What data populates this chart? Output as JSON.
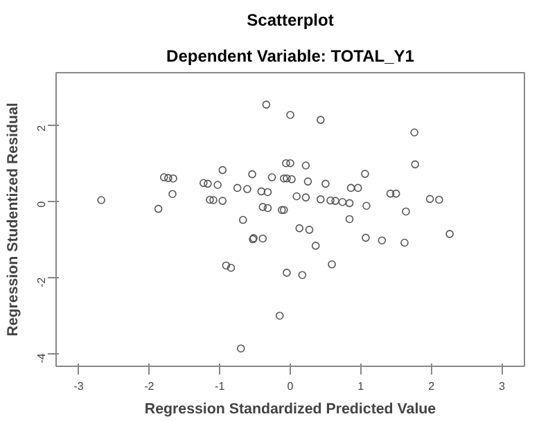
{
  "chart_data": {
    "type": "scatter",
    "title": "Scatterplot",
    "subtitle": "Dependent Variable: TOTAL_Y1",
    "xlabel": "Regression Standardized Predicted Value",
    "ylabel": "Regression Studentized Residual",
    "marker": "circle",
    "grid": false,
    "xlim": [
      -3.32,
      3.32
    ],
    "ylim": [
      -4.34,
      3.38
    ],
    "xticks": [
      -3,
      -2,
      -1,
      0,
      1,
      2,
      3
    ],
    "yticks": [
      -4,
      -2,
      0,
      2
    ],
    "series": [
      {
        "color": "#555555",
        "x": [
          -0.34,
          0.0,
          0.43,
          1.76,
          1.77,
          -0.06,
          0.0,
          0.22,
          -0.96,
          -0.54,
          -0.26,
          -1.79,
          -1.73,
          -1.66,
          -1.23,
          -1.17,
          -1.03,
          -0.09,
          -0.05,
          0.02,
          0.25,
          0.5,
          1.06,
          -1.67,
          -0.75,
          -0.61,
          0.86,
          0.96,
          -0.41,
          -0.32,
          1.42,
          1.5,
          0.09,
          0.22,
          0.43,
          0.57,
          0.64,
          0.74,
          0.84,
          1.98,
          2.11,
          -2.68,
          -1.14,
          -1.09,
          -0.96,
          -1.87,
          -0.39,
          -0.32,
          -0.09,
          -0.12,
          1.08,
          1.64,
          -0.67,
          0.84,
          0.13,
          0.27,
          0.36,
          1.07,
          1.3,
          1.62,
          2.26,
          -0.52,
          -0.53,
          -0.39,
          0.59,
          -0.91,
          -0.84,
          -0.05,
          0.17,
          -0.15,
          -0.7
        ],
        "values": [
          2.54,
          2.27,
          2.14,
          1.81,
          0.97,
          1.0,
          1.0,
          0.94,
          0.82,
          0.71,
          0.63,
          0.63,
          0.61,
          0.6,
          0.48,
          0.46,
          0.43,
          0.6,
          0.6,
          0.58,
          0.52,
          0.46,
          0.72,
          0.19,
          0.35,
          0.32,
          0.35,
          0.35,
          0.26,
          0.24,
          0.2,
          0.2,
          0.13,
          0.1,
          0.05,
          0.02,
          0.01,
          -0.02,
          -0.05,
          0.06,
          0.04,
          0.03,
          0.04,
          0.03,
          0.01,
          -0.2,
          -0.15,
          -0.18,
          -0.23,
          -0.23,
          -0.12,
          -0.27,
          -0.49,
          -0.47,
          -0.71,
          -0.75,
          -1.17,
          -0.96,
          -1.03,
          -1.09,
          -0.86,
          -0.97,
          -1.0,
          -0.98,
          -1.66,
          -1.69,
          -1.75,
          -1.88,
          -1.94,
          -3.01,
          -3.87
        ]
      }
    ]
  }
}
